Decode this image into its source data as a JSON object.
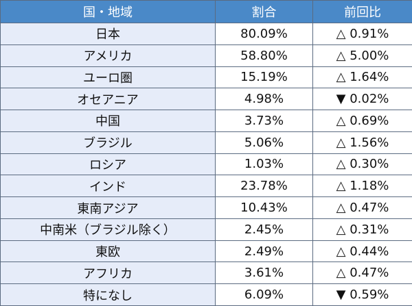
{
  "table": {
    "header": [
      "国・地域",
      "割合",
      "前回比"
    ],
    "rows": [
      [
        "日本",
        "80.09%",
        "△ 0.91%"
      ],
      [
        "アメリカ",
        "58.80%",
        "△ 5.00%"
      ],
      [
        "ユーロ圏",
        "15.19%",
        "△ 1.64%"
      ],
      [
        "オセアニア",
        "4.98%",
        "▼ 0.02%"
      ],
      [
        "中国",
        "3.73%",
        "△ 0.69%"
      ],
      [
        "ブラジル",
        "5.06%",
        "△ 1.56%"
      ],
      [
        "ロシア",
        "1.03%",
        "△ 0.30%"
      ],
      [
        "インド",
        "23.78%",
        "△ 1.18%"
      ],
      [
        "東南アジア",
        "10.43%",
        "△ 0.47%"
      ],
      [
        "中南米（ブラジル除く）",
        "2.45%",
        "△ 0.31%"
      ],
      [
        "東欧",
        "2.49%",
        "△ 0.44%"
      ],
      [
        "アフリカ",
        "3.61%",
        "△ 0.47%"
      ],
      [
        "特になし",
        "6.09%",
        "▼ 0.59%"
      ]
    ]
  }
}
